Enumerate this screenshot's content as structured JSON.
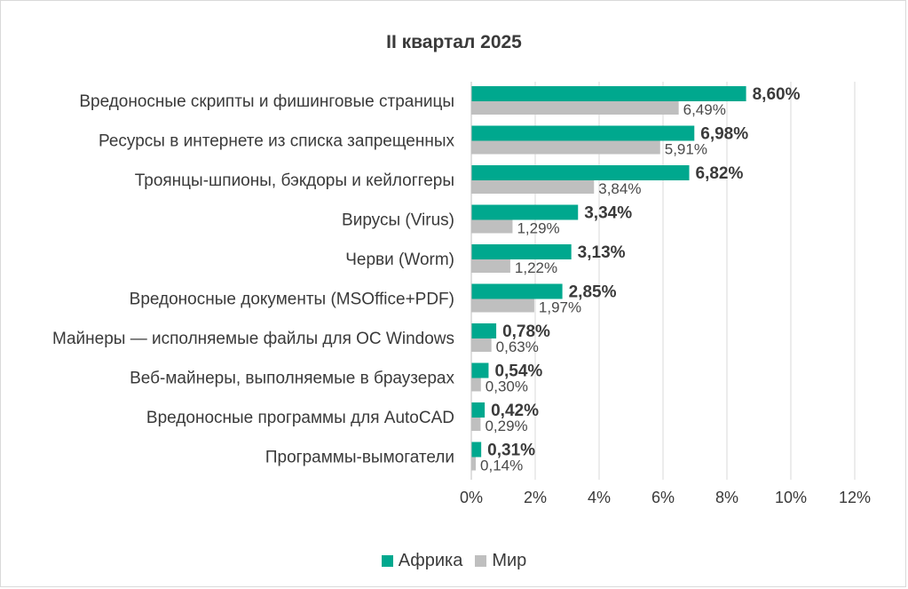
{
  "chart_data": {
    "type": "bar",
    "orientation": "horizontal",
    "title": "II квартал 2025",
    "categories": [
      "Вредоносные скрипты и фишинговые страницы",
      "Ресурсы в интернете из списка запрещенных",
      "Троянцы-шпионы, бэкдоры и кейлоггеры",
      "Вирусы (Virus)",
      "Черви (Worm)",
      "Вредоносные документы (MSOffice+PDF)",
      "Майнеры — исполняемые файлы для ОС Windows",
      "Веб-майнеры, выполняемые в браузерах",
      "Вредоносные программы для AutoCAD",
      "Программы-вымогатели"
    ],
    "series": [
      {
        "name": "Африка",
        "color": "#00a88e",
        "values": [
          8.6,
          6.98,
          6.82,
          3.34,
          3.13,
          2.85,
          0.78,
          0.54,
          0.42,
          0.31
        ],
        "labels": [
          "8,60%",
          "6,98%",
          "6,82%",
          "3,34%",
          "3,13%",
          "2,85%",
          "0,78%",
          "0,54%",
          "0,42%",
          "0,31%"
        ]
      },
      {
        "name": "Мир",
        "color": "#bfbfbf",
        "values": [
          6.49,
          5.91,
          3.84,
          1.29,
          1.22,
          1.97,
          0.63,
          0.3,
          0.29,
          0.14
        ],
        "labels": [
          "6,49%",
          "5,91%",
          "3,84%",
          "1,29%",
          "1,22%",
          "1,97%",
          "0,63%",
          "0,30%",
          "0,29%",
          "0,14%"
        ]
      }
    ],
    "xlim": [
      0,
      12
    ],
    "xticks": [
      "0%",
      "2%",
      "4%",
      "6%",
      "8%",
      "10%",
      "12%"
    ],
    "grid": true,
    "legend_position": "bottom"
  }
}
